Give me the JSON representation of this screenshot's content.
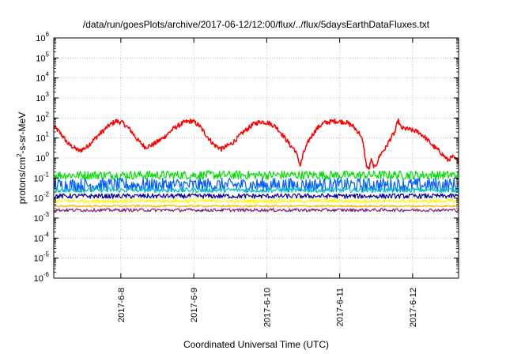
{
  "chart_data": {
    "type": "line",
    "title": "/data/run/goesPlots/archive/2017-06-12/12:00/flux/../flux/5daysEarthDataFluxes.txt",
    "xlabel": "Coordinated Universal Time (UTC)",
    "ylabel_main": "protons/cm",
    "ylabel_sup": "2",
    "ylabel_rest": "-s-sr-MeV",
    "y_scale": "log",
    "ylim": [
      -6,
      6
    ],
    "y_ticks": [
      {
        "exp": "6"
      },
      {
        "exp": "5"
      },
      {
        "exp": "4"
      },
      {
        "exp": "3"
      },
      {
        "exp": "2"
      },
      {
        "exp": "1"
      },
      {
        "exp": "0"
      },
      {
        "exp": "-1"
      },
      {
        "exp": "-2"
      },
      {
        "exp": "-3"
      },
      {
        "exp": "-4"
      },
      {
        "exp": "-5"
      },
      {
        "exp": "-6"
      }
    ],
    "y_tick_base": "10",
    "xlim": [
      0,
      5.55
    ],
    "x_ticks": [
      {
        "pos": 0.92,
        "label": "2017-6-8"
      },
      {
        "pos": 1.92,
        "label": "2017-6-9"
      },
      {
        "pos": 2.92,
        "label": "2017-6-10"
      },
      {
        "pos": 3.92,
        "label": "2017-6-11"
      },
      {
        "pos": 4.92,
        "label": "2017-6-12"
      }
    ],
    "grid": true,
    "series": [
      {
        "name": "red",
        "color": "#ff0000",
        "noise": 0.12,
        "points": [
          [
            0,
            1.6
          ],
          [
            0.1,
            1.2
          ],
          [
            0.2,
            0.7
          ],
          [
            0.35,
            0.35
          ],
          [
            0.45,
            0.55
          ],
          [
            0.6,
            1.1
          ],
          [
            0.75,
            1.6
          ],
          [
            0.85,
            1.85
          ],
          [
            0.95,
            1.75
          ],
          [
            1.05,
            1.4
          ],
          [
            1.15,
            0.9
          ],
          [
            1.25,
            0.55
          ],
          [
            1.35,
            0.65
          ],
          [
            1.5,
            1.0
          ],
          [
            1.65,
            1.5
          ],
          [
            1.8,
            1.8
          ],
          [
            1.9,
            1.85
          ],
          [
            2.0,
            1.6
          ],
          [
            2.1,
            1.1
          ],
          [
            2.2,
            0.65
          ],
          [
            2.3,
            0.45
          ],
          [
            2.45,
            0.75
          ],
          [
            2.6,
            1.3
          ],
          [
            2.75,
            1.72
          ],
          [
            2.85,
            1.82
          ],
          [
            2.95,
            1.75
          ],
          [
            3.05,
            1.55
          ],
          [
            3.15,
            1.1
          ],
          [
            3.25,
            0.6
          ],
          [
            3.3,
            0.45
          ],
          [
            3.35,
            0.0
          ],
          [
            3.38,
            -0.4
          ],
          [
            3.42,
            0.2
          ],
          [
            3.5,
            0.9
          ],
          [
            3.6,
            1.45
          ],
          [
            3.7,
            1.75
          ],
          [
            3.85,
            1.85
          ],
          [
            4.0,
            1.8
          ],
          [
            4.1,
            1.6
          ],
          [
            4.2,
            1.2
          ],
          [
            4.25,
            0.6
          ],
          [
            4.28,
            -0.3
          ],
          [
            4.32,
            -0.6
          ],
          [
            4.35,
            -0.1
          ],
          [
            4.4,
            -0.5
          ],
          [
            4.48,
            0.2
          ],
          [
            4.55,
            0.5
          ],
          [
            4.62,
            1.0
          ],
          [
            4.68,
            1.3
          ],
          [
            4.72,
            1.9
          ],
          [
            4.76,
            1.5
          ],
          [
            4.85,
            1.45
          ],
          [
            5.0,
            1.3
          ],
          [
            5.1,
            1.0
          ],
          [
            5.2,
            0.6
          ],
          [
            5.3,
            0.3
          ],
          [
            5.4,
            -0.1
          ],
          [
            5.47,
            0.05
          ],
          [
            5.55,
            -0.2
          ]
        ]
      },
      {
        "name": "green",
        "color": "#00e000",
        "base": -0.85,
        "noise": 0.22
      },
      {
        "name": "blue",
        "color": "#0060ff",
        "base": -1.35,
        "noise": 0.35
      },
      {
        "name": "cyan",
        "color": "#00c0c0",
        "base": -1.6,
        "noise": 0.12
      },
      {
        "name": "navy",
        "color": "#0000a0",
        "base": -1.9,
        "noise": 0.12
      },
      {
        "name": "yellow",
        "color": "#ffff00",
        "base": -2.15,
        "noise": 0.1
      },
      {
        "name": "orange",
        "color": "#ffb000",
        "base": -2.4,
        "noise": 0.05
      },
      {
        "name": "purple",
        "color": "#802080",
        "base": -2.6,
        "noise": 0.08
      }
    ]
  }
}
